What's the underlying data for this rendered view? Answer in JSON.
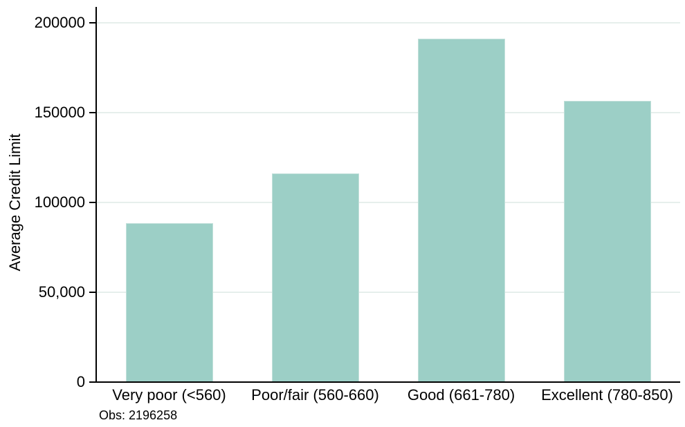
{
  "chart_data": {
    "type": "bar",
    "title": "",
    "xlabel": "",
    "ylabel": "Average Credit Limit",
    "categories": [
      "Very poor (<560)",
      "Poor/fair (560-660)",
      "Good (661-780)",
      "Excellent (780-850)"
    ],
    "values": [
      88500,
      116000,
      191000,
      156500
    ],
    "ylim": [
      0,
      200000
    ],
    "ytick_values": [
      0,
      50000,
      100000,
      150000,
      200000
    ],
    "ytick_labels": [
      "0",
      "50,000",
      "100000",
      "150000",
      "200000"
    ],
    "grid": true,
    "legend": "none",
    "note": "Obs: 2196258",
    "colors": {
      "bar_fill": "#9CCFC6",
      "bar_border": "#C2E0DA",
      "gridline": "#E6EFEC",
      "axis": "#000000",
      "text": "#000000"
    }
  }
}
